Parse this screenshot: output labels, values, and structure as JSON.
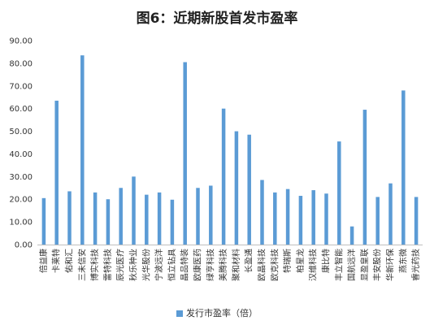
{
  "chart_data": {
    "type": "bar",
    "title": "图6：近期新股首发市盈率",
    "ylim": [
      0,
      90
    ],
    "yticks": [
      "0.00",
      "10.00",
      "20.00",
      "30.00",
      "40.00",
      "50.00",
      "60.00",
      "70.00",
      "80.00",
      "90.00"
    ],
    "grid": false,
    "legend_position": "bottom",
    "bar_color": "#5b9bd5",
    "categories": [
      "倍益康",
      "卡莱特",
      "佑和汇",
      "三未信安",
      "博实科技",
      "雷特科技",
      "辰光医疗",
      "秋乐种业",
      "光华股份",
      "宁波远洋",
      "恒立钻具",
      "晶品特装",
      "欧康医药",
      "绿亨科技",
      "美腾科技",
      "聚和材料",
      "长盈通",
      "欧晶科技",
      "欧克科技",
      "特瑞斯",
      "柏星龙",
      "汉维科技",
      "康比特",
      "丰立智能",
      "国航远洋",
      "显盈皇联",
      "丰安股份",
      "华新环保",
      "燕东微",
      "睿光药技"
    ],
    "series": [
      {
        "name": "发行市盈率（倍）",
        "values": [
          20.5,
          63.5,
          23.5,
          83.5,
          23.0,
          20.0,
          25.0,
          30.0,
          22.0,
          23.0,
          19.8,
          80.5,
          25.0,
          26.0,
          60.0,
          50.0,
          48.5,
          28.5,
          23.0,
          24.5,
          21.5,
          24.0,
          22.5,
          45.5,
          8.0,
          59.5,
          21.0,
          27.0,
          68.0,
          21.0
        ]
      }
    ]
  }
}
